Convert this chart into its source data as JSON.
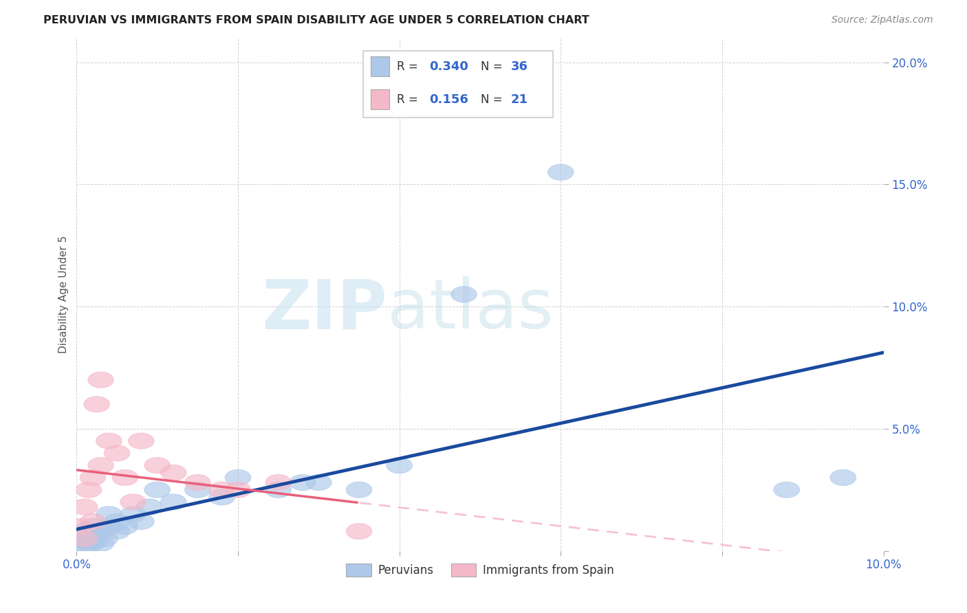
{
  "title": "PERUVIAN VS IMMIGRANTS FROM SPAIN DISABILITY AGE UNDER 5 CORRELATION CHART",
  "source": "Source: ZipAtlas.com",
  "ylabel": "Disability Age Under 5",
  "xlim": [
    0.0,
    0.1
  ],
  "ylim": [
    0.0,
    0.21
  ],
  "xticks": [
    0.0,
    0.02,
    0.04,
    0.06,
    0.08,
    0.1
  ],
  "yticks": [
    0.0,
    0.05,
    0.1,
    0.15,
    0.2
  ],
  "peruvian_color": "#adc8e8",
  "peruvian_edge": "#adc8e8",
  "spain_color": "#f5b8c8",
  "spain_edge": "#f5b8c8",
  "peruvian_line_color": "#1a4a9e",
  "spain_solid_color": "#e8607a",
  "spain_dash_color": "#f5b8c8",
  "R_peru": 0.34,
  "N_peru": 36,
  "R_spain": 0.156,
  "N_spain": 21,
  "watermark_zip": "ZIP",
  "watermark_atlas": "atlas",
  "peru_x": [
    0.0005,
    0.0008,
    0.001,
    0.001,
    0.0012,
    0.0015,
    0.0018,
    0.002,
    0.002,
    0.0022,
    0.0025,
    0.003,
    0.003,
    0.0035,
    0.004,
    0.004,
    0.005,
    0.005,
    0.006,
    0.007,
    0.008,
    0.009,
    0.01,
    0.012,
    0.015,
    0.018,
    0.02,
    0.025,
    0.028,
    0.03,
    0.035,
    0.04,
    0.048,
    0.06,
    0.088,
    0.095
  ],
  "peru_y": [
    0.003,
    0.005,
    0.002,
    0.008,
    0.004,
    0.006,
    0.003,
    0.005,
    0.01,
    0.004,
    0.007,
    0.003,
    0.008,
    0.005,
    0.01,
    0.015,
    0.008,
    0.012,
    0.01,
    0.015,
    0.012,
    0.018,
    0.025,
    0.02,
    0.025,
    0.022,
    0.03,
    0.025,
    0.028,
    0.028,
    0.025,
    0.035,
    0.105,
    0.155,
    0.025,
    0.03
  ],
  "spain_x": [
    0.0005,
    0.001,
    0.001,
    0.0015,
    0.002,
    0.002,
    0.0025,
    0.003,
    0.003,
    0.004,
    0.005,
    0.006,
    0.007,
    0.008,
    0.01,
    0.012,
    0.015,
    0.018,
    0.02,
    0.025,
    0.035
  ],
  "spain_y": [
    0.01,
    0.005,
    0.018,
    0.025,
    0.012,
    0.03,
    0.06,
    0.07,
    0.035,
    0.045,
    0.04,
    0.03,
    0.02,
    0.045,
    0.035,
    0.032,
    0.028,
    0.025,
    0.025,
    0.028,
    0.008
  ]
}
